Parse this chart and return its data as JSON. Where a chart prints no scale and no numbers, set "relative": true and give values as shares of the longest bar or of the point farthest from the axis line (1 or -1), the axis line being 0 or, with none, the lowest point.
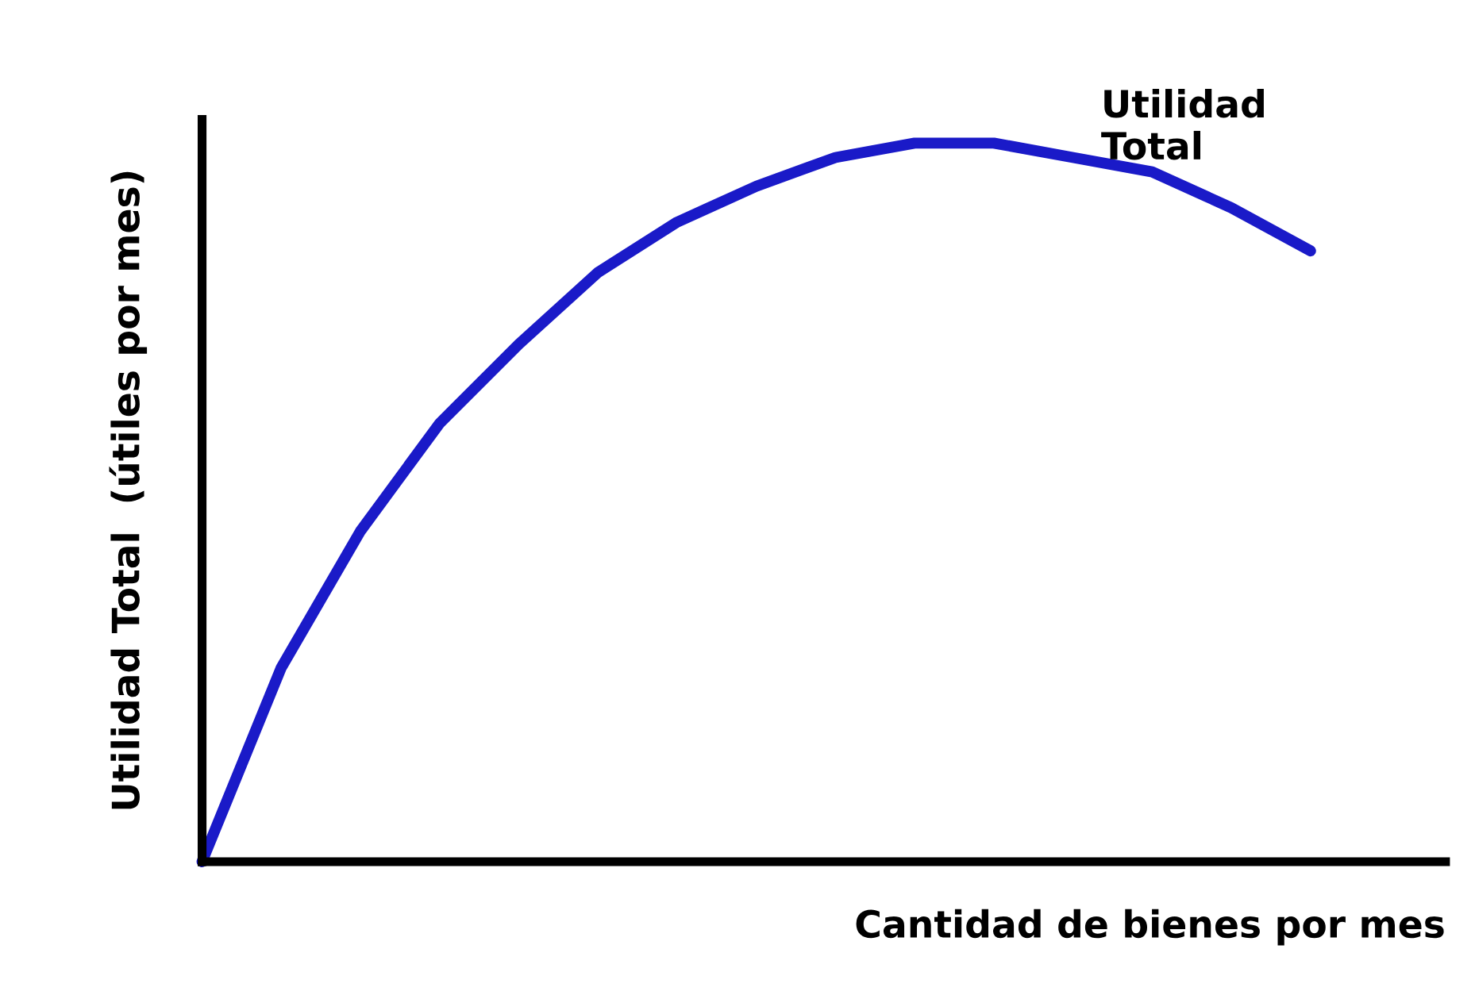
{
  "chart_data": {
    "type": "line",
    "relative": true,
    "xlabel": "Cantidad de bienes por mes",
    "ylabel": "Utilidad Total  (útiles por mes)",
    "categories": [
      null,
      null,
      null,
      null,
      null,
      null,
      null,
      null,
      null,
      null,
      null,
      null,
      null,
      null,
      null
    ],
    "series": [
      {
        "name": "Utilidad\nTotal",
        "color": "#1a1ac8",
        "values": [
          0,
          0.27,
          0.46,
          0.61,
          0.72,
          0.82,
          0.89,
          0.94,
          0.98,
          1,
          1.0,
          0.98,
          0.96,
          0.91,
          0.85
        ]
      }
    ],
    "legend": false,
    "grid": false,
    "marker": "none",
    "line_style": "solid"
  }
}
